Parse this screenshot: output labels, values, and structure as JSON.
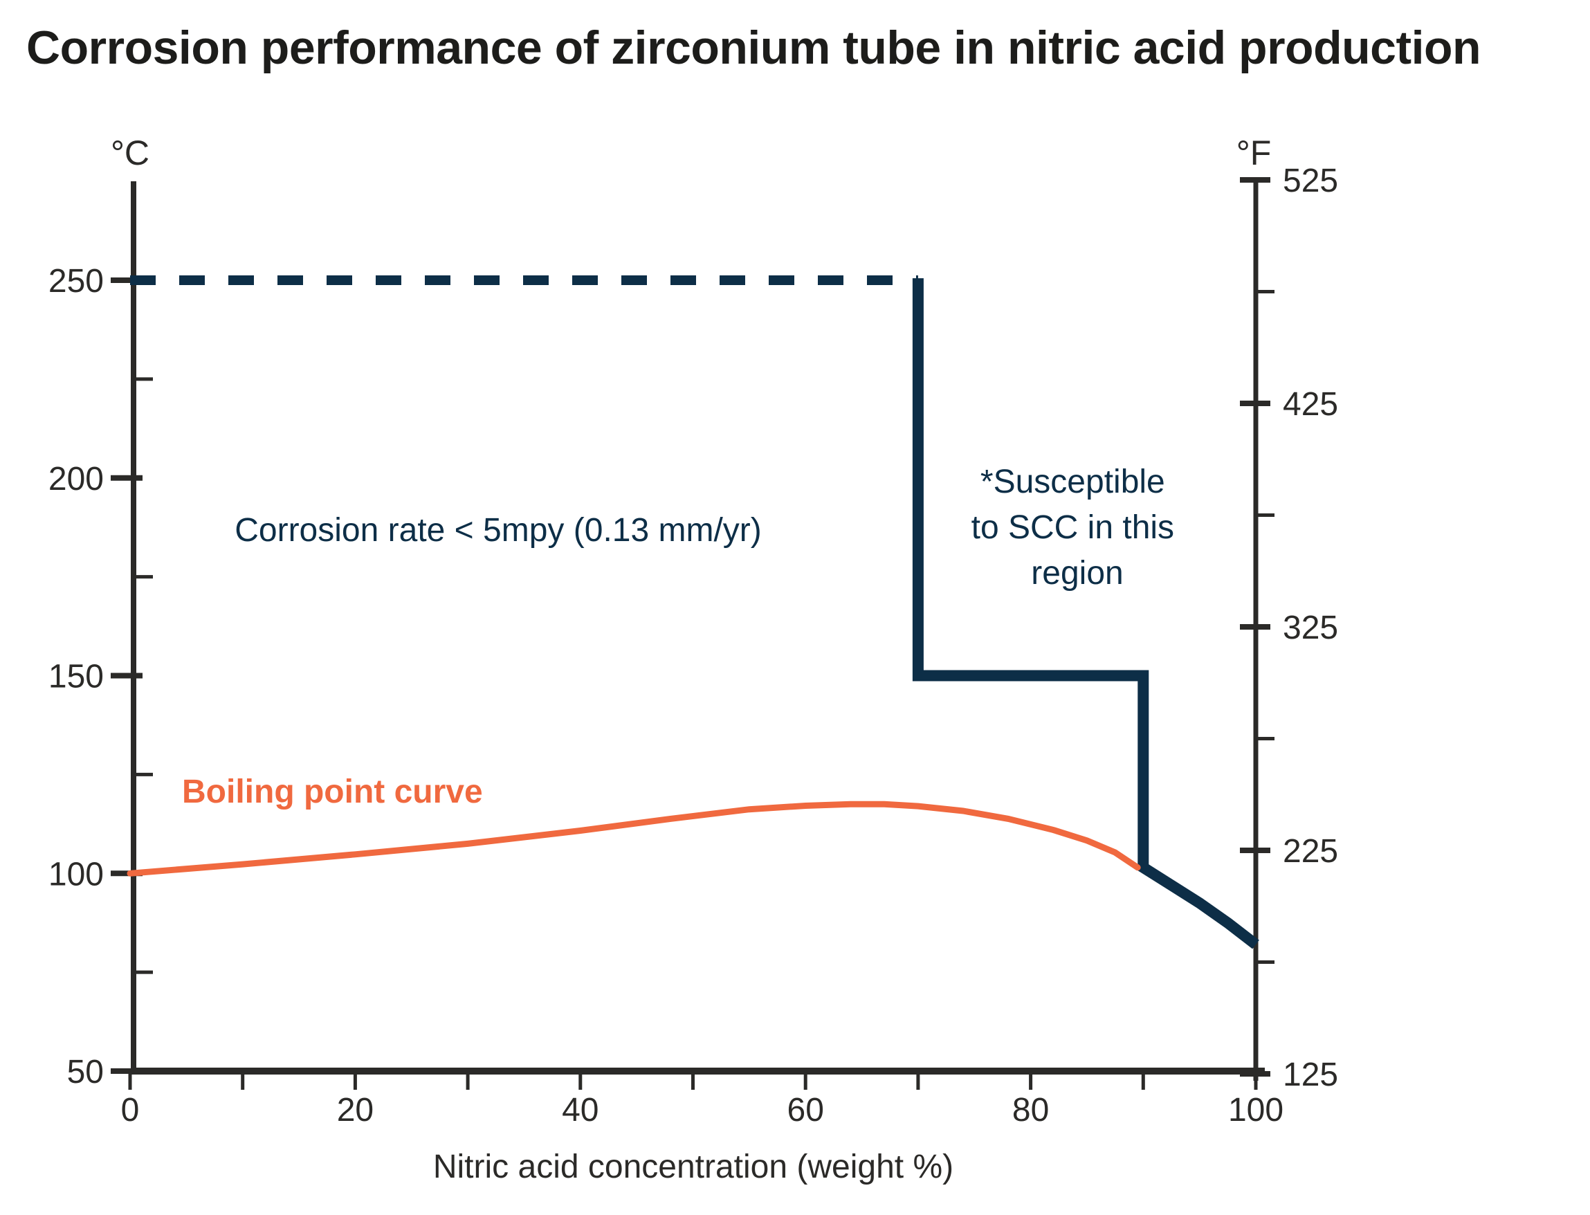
{
  "title": "Corrosion performance of zirconium tube in nitric acid production",
  "colors": {
    "navy": "#0d2e47",
    "orange": "#f0693f",
    "axis": "#2b2a28",
    "title_color": "#1d1d1b"
  },
  "annotations": {
    "corrosion_rate": "Corrosion rate < 5mpy (0.13 mm/yr)",
    "scc_line1": "*Susceptible",
    "scc_line2": "to SCC in this",
    "scc_line3": "region",
    "boiling_label": "Boiling point curve"
  },
  "chart_data": {
    "type": "line",
    "title": "Corrosion performance of zirconium tube in nitric acid production",
    "xlabel": "Nitric acid concentration (weight %)",
    "grid": "off",
    "legend": "none (inline labels)",
    "x_axis": {
      "min": 0,
      "max": 100,
      "minor_tick_step": 10,
      "tick_values": [
        0,
        10,
        20,
        30,
        40,
        50,
        60,
        70,
        80,
        90,
        100
      ],
      "label_values": [
        0,
        20,
        40,
        60,
        80,
        100
      ]
    },
    "y_axis_c": {
      "unit": "°C",
      "min": 50,
      "max": 275,
      "major_ticks": [
        50,
        100,
        150,
        200,
        250
      ],
      "minor_ticks": [
        75,
        125,
        175,
        225
      ]
    },
    "y_axis_f": {
      "unit": "°F",
      "min": 125,
      "max": 525,
      "major_ticks": [
        125,
        225,
        325,
        425,
        525
      ],
      "minor_ticks": [
        175,
        275,
        375,
        475
      ]
    },
    "series": [
      {
        "name": "corrosion-limit-dashed",
        "description": "Upper boundary of corrosion rate < 5 mpy region (dashed), 250 °C from 0% to 70%",
        "style": "dashed",
        "color_key": "navy",
        "points": [
          [
            0,
            250
          ],
          [
            70,
            250
          ]
        ]
      },
      {
        "name": "scc-boundary-solid",
        "description": "Solid boundary: drops at 70% to 150 °C, across to 90%, down to boiling curve, then follows it to 100%",
        "style": "solid",
        "color_key": "navy",
        "points": [
          [
            70,
            250.5
          ],
          [
            70,
            150
          ],
          [
            90,
            150
          ],
          [
            90,
            101.5
          ],
          [
            92.5,
            97
          ],
          [
            95,
            92.5
          ],
          [
            97.5,
            87.5
          ],
          [
            100,
            82
          ]
        ]
      },
      {
        "name": "boiling-point-curve",
        "description": "Boiling point of nitric acid solution vs concentration",
        "style": "solid",
        "color_key": "orange",
        "points": [
          [
            0,
            100
          ],
          [
            10,
            102.3
          ],
          [
            20,
            104.8
          ],
          [
            30,
            107.5
          ],
          [
            40,
            110.8
          ],
          [
            48,
            113.8
          ],
          [
            55,
            116.2
          ],
          [
            60,
            117.1
          ],
          [
            64,
            117.5
          ],
          [
            67,
            117.5
          ],
          [
            70,
            117.0
          ],
          [
            74,
            115.8
          ],
          [
            78,
            113.8
          ],
          [
            82,
            111.0
          ],
          [
            85,
            108.3
          ],
          [
            87.5,
            105.3
          ],
          [
            89.5,
            101.5
          ]
        ]
      }
    ]
  }
}
